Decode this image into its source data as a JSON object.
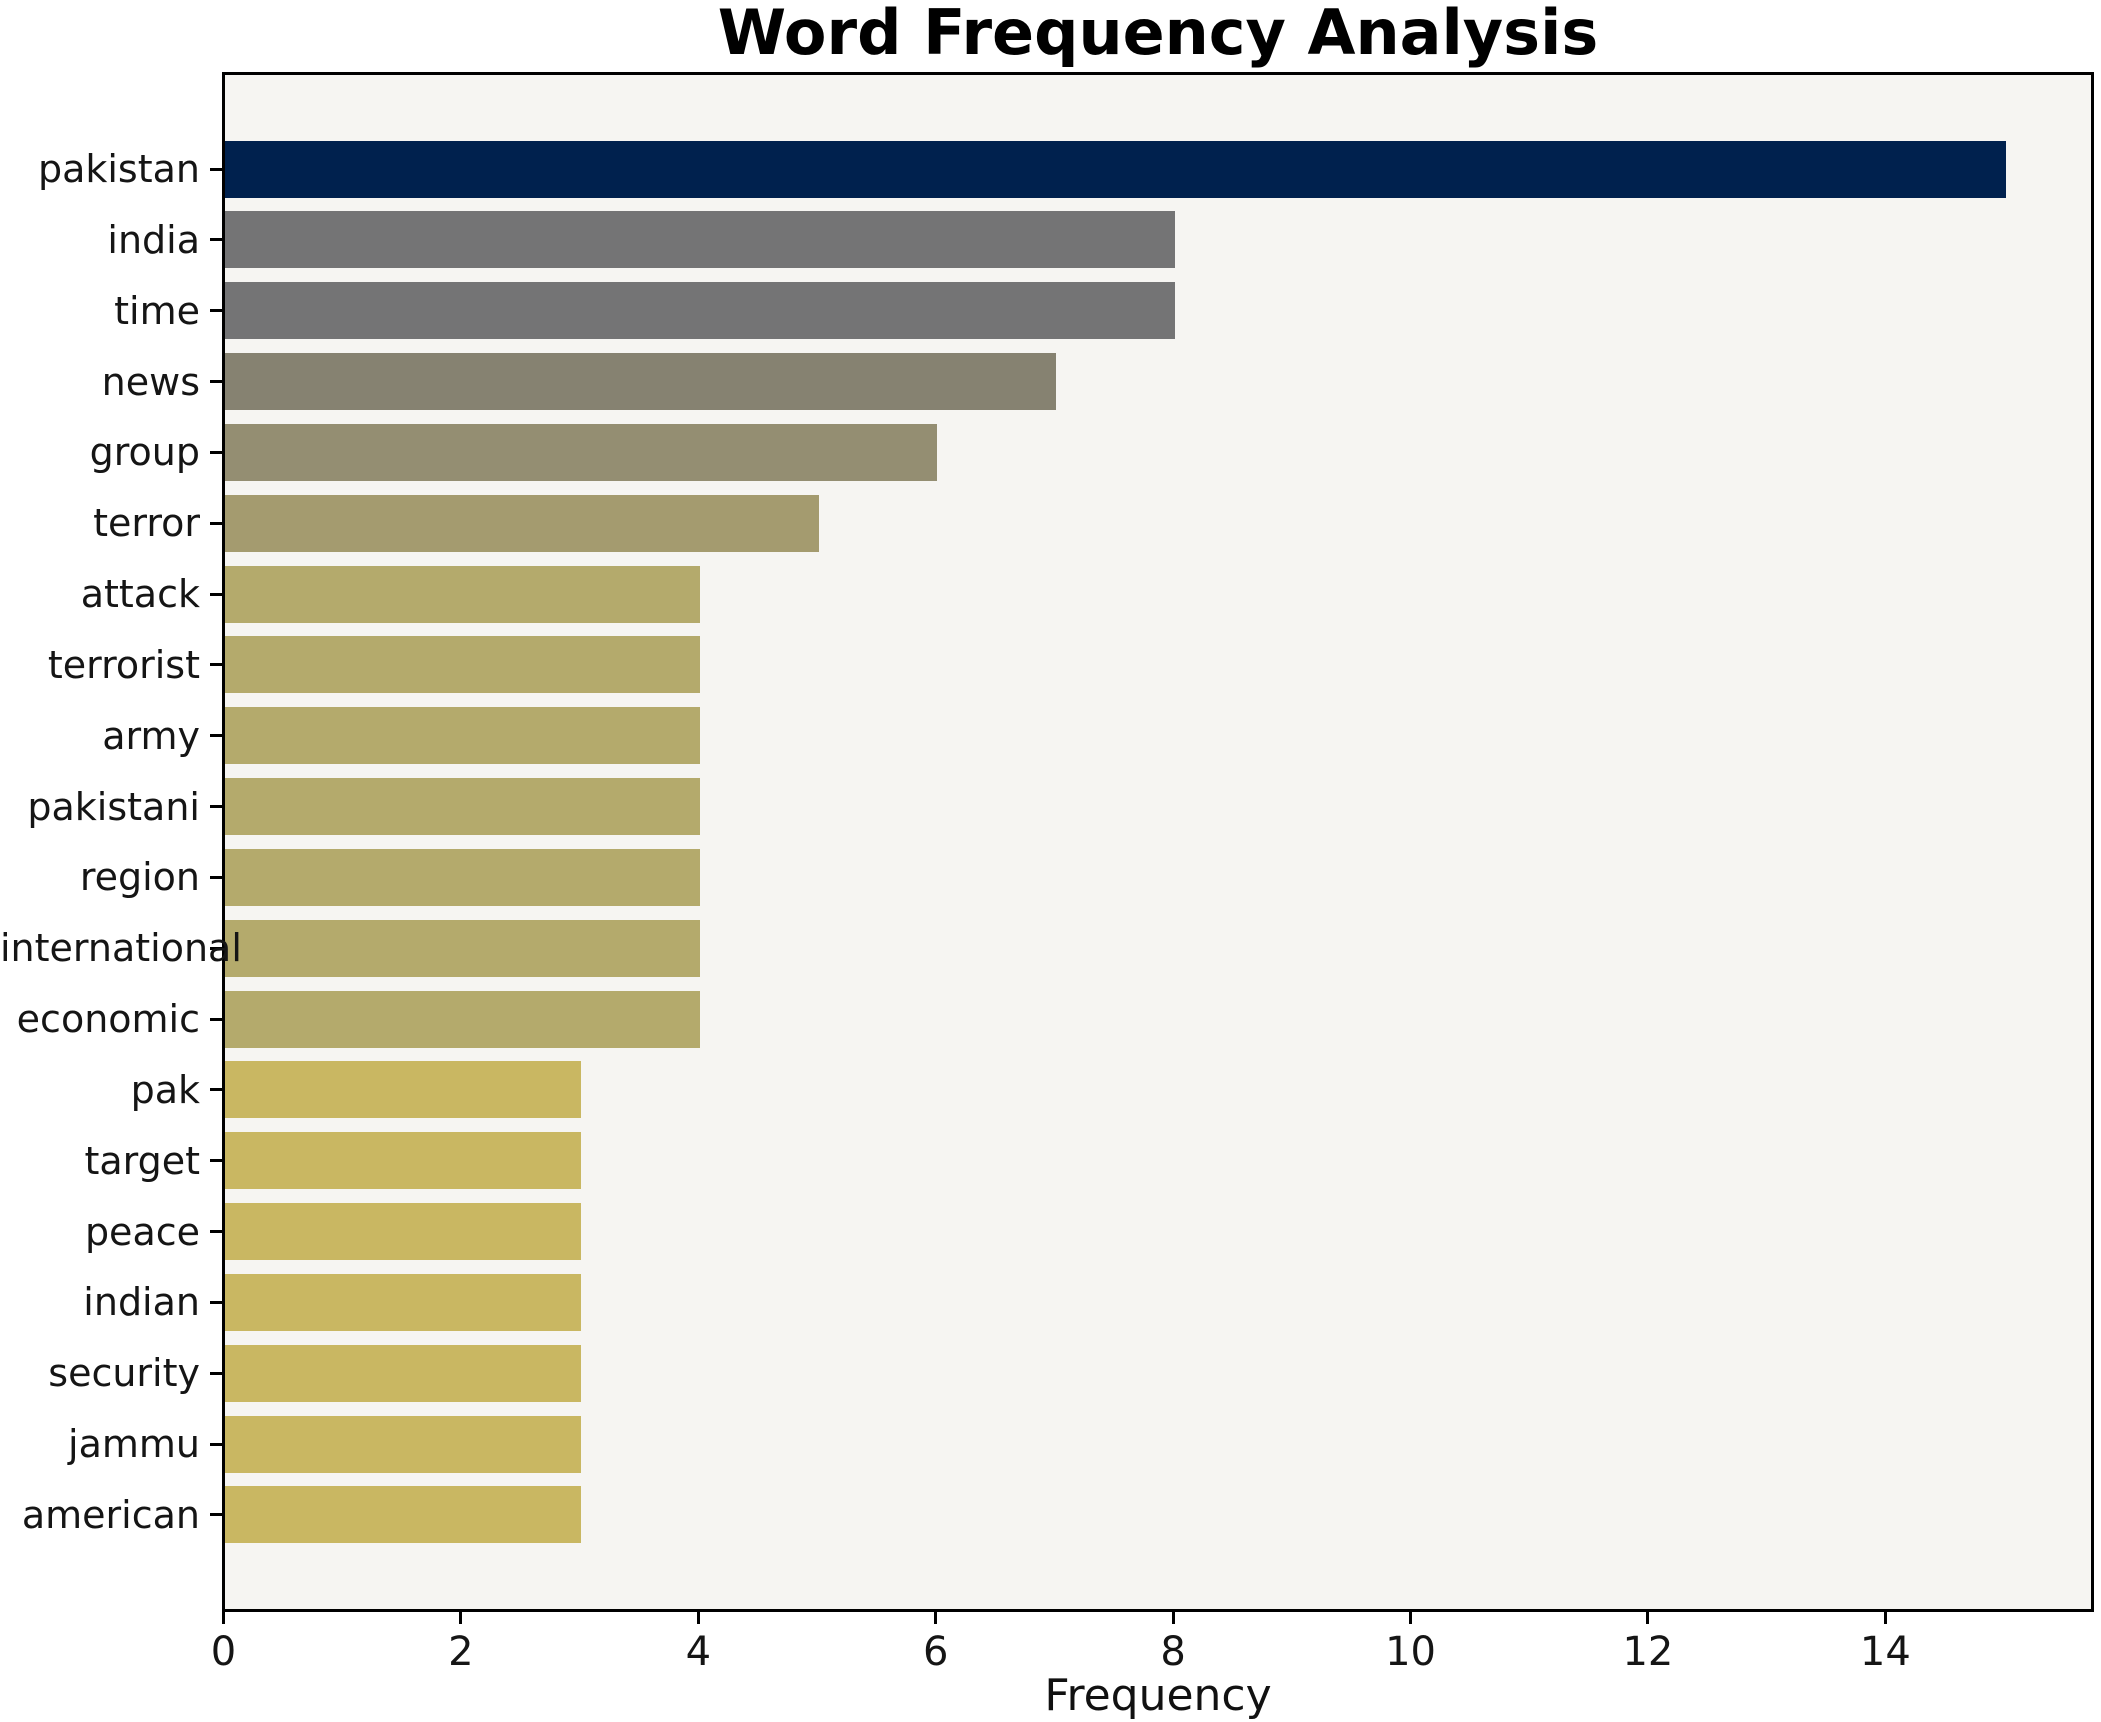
{
  "figure": {
    "title": "Word Frequency Analysis",
    "xlabel": "Frequency"
  },
  "chart_data": {
    "type": "bar",
    "orientation": "horizontal",
    "title": "Word Frequency Analysis",
    "xlabel": "Frequency",
    "ylabel": "",
    "categories": [
      "pakistan",
      "india",
      "time",
      "news",
      "group",
      "terror",
      "attack",
      "terrorist",
      "army",
      "pakistani",
      "region",
      "international",
      "economic",
      "pak",
      "target",
      "peace",
      "indian",
      "security",
      "jammu",
      "american"
    ],
    "values": [
      15,
      8,
      8,
      7,
      6,
      5,
      4,
      4,
      4,
      4,
      4,
      4,
      4,
      3,
      3,
      3,
      3,
      3,
      3,
      3
    ],
    "bar_colors": [
      "#00214E",
      "#747475",
      "#747475",
      "#868271",
      "#948E72",
      "#A49B6F",
      "#B4AA6C",
      "#B4AA6C",
      "#B4AA6C",
      "#B4AA6C",
      "#B4AA6C",
      "#B4AA6C",
      "#B4AA6C",
      "#C9B762",
      "#C9B762",
      "#C9B762",
      "#C9B762",
      "#C9B762",
      "#C9B762",
      "#C9B762"
    ],
    "xticks": [
      0,
      2,
      4,
      6,
      8,
      10,
      12,
      14
    ],
    "xlim": [
      0,
      15.72
    ],
    "grid": false,
    "legend": false,
    "colors": {
      "plot_background": "#F6F5F2",
      "figure_background": "#FFFFFF",
      "spine": "#000000",
      "tick_label": "#151515",
      "title": "#000000"
    }
  }
}
